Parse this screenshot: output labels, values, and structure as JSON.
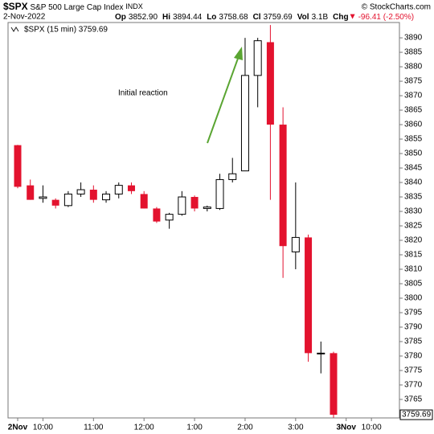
{
  "chart_data": {
    "type": "candlestick",
    "header": {
      "symbol": "$SPX",
      "name": "S&P 500 Large Cap Index",
      "exchange": "INDX",
      "source": "© StockCharts.com",
      "date": "2-Nov-2022",
      "stats": [
        {
          "label": "Op",
          "value": "3852.90"
        },
        {
          "label": "Hi",
          "value": "3894.44"
        },
        {
          "label": "Lo",
          "value": "3758.68"
        },
        {
          "label": "Cl",
          "value": "3759.69"
        },
        {
          "label": "Vol",
          "value": "3.1B"
        },
        {
          "label": "Chg",
          "value": "-96.41 (-2.50%)"
        }
      ]
    },
    "legend": "$SPX (15 min) 3759.69",
    "annotation": "Initial reaction",
    "price_label": "3759.69",
    "up_color": "#ffffff",
    "down_color": "#e3122e",
    "annotation_color": "#5aa532",
    "categories": [
      "2Nov",
      null,
      "10:00",
      null,
      null,
      null,
      "11:00",
      null,
      null,
      null,
      "12:00",
      null,
      null,
      null,
      "1:00",
      null,
      null,
      null,
      "2:00",
      null,
      null,
      null,
      "3:00",
      null,
      null,
      null,
      "3Nov",
      null,
      "10:00"
    ],
    "open": [
      3852.9,
      3839,
      3834.5,
      3834,
      3832,
      3836,
      3837.5,
      3834,
      3836,
      3839,
      3836,
      3831,
      3827,
      3829,
      3835,
      3831,
      3831,
      3841,
      3844,
      3877,
      3888.5,
      3860,
      3816,
      3821,
      3781,
      3781,
      null,
      null,
      null
    ],
    "high": [
      3853,
      3841,
      3839,
      3834.5,
      3837,
      3840,
      3839,
      3837,
      3840,
      3840,
      3837,
      3831.5,
      3829.5,
      3837,
      3835.5,
      3832,
      3843,
      3848.5,
      3890,
      3890,
      3894.44,
      3866,
      3840,
      3822,
      3785,
      3781.5,
      null,
      null,
      null
    ],
    "low": [
      3838,
      3834,
      3833,
      3831,
      3831.5,
      3835,
      3833,
      3833,
      3834.5,
      3836,
      3831,
      3826,
      3824,
      3828.5,
      3830,
      3830,
      3830.5,
      3840,
      3844,
      3866,
      3834,
      3807,
      3810,
      3778,
      3774,
      3758.68,
      null,
      null,
      null
    ],
    "close": [
      3838.5,
      3834,
      3835,
      3832,
      3836,
      3837.5,
      3834,
      3836,
      3839,
      3837,
      3831,
      3826.5,
      3829,
      3835,
      3831,
      3831.5,
      3841,
      3843,
      3877,
      3889,
      3860,
      3818,
      3821,
      3781,
      3781,
      3759.69,
      null,
      null,
      null
    ],
    "ylim": [
      3758.6,
      3895.3
    ],
    "yticks": [
      3765,
      3770,
      3775,
      3780,
      3785,
      3790,
      3795,
      3800,
      3805,
      3810,
      3815,
      3820,
      3825,
      3830,
      3835,
      3840,
      3845,
      3850,
      3855,
      3860,
      3865,
      3870,
      3875,
      3880,
      3885,
      3890
    ]
  }
}
